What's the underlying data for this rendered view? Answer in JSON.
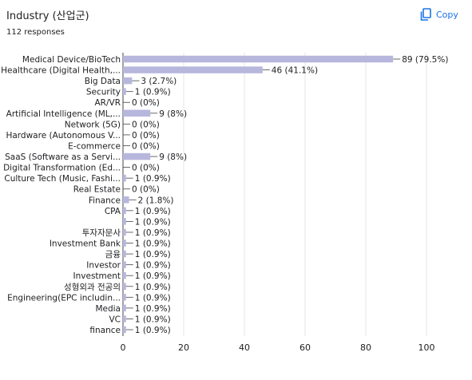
{
  "header": {
    "title": "Industry (산업군)",
    "responses": "112 responses",
    "copy_label": "Copy"
  },
  "colors": {
    "bar": "#b7b7dd",
    "grid": "#e6e6e6",
    "axis": "#444444",
    "text": "#202124",
    "accent": "#1a73e8"
  },
  "icons": {
    "copy": "copy-icon"
  },
  "chart_data": {
    "type": "bar",
    "orientation": "horizontal",
    "categories": [
      "Medical Device/BioTech",
      "Healthcare (Digital Health,...",
      "Big Data",
      "Security",
      "AR/VR",
      "Artificial Intelligence (ML,...",
      "Network (5G)",
      "Hardware (Autonomous V...",
      "E-commerce",
      "SaaS (Software as a Servi...",
      "Digital Transformation (Ed...",
      "Culture Tech (Music, Fashi...",
      "Real Estate",
      "Finance",
      "CPA",
      "",
      "투자자문사",
      "Investment Bank",
      "금융",
      "Investor",
      "Investment",
      "성형외과 전공의",
      "Engineering(EPC includin...",
      "Media",
      "VC",
      "finance"
    ],
    "values": [
      89,
      46,
      3,
      1,
      0,
      9,
      0,
      0,
      0,
      9,
      0,
      1,
      0,
      2,
      1,
      1,
      1,
      1,
      1,
      1,
      1,
      1,
      1,
      1,
      1,
      1
    ],
    "value_labels": [
      "89 (79.5%)",
      "46 (41.1%)",
      "3 (2.7%)",
      "1 (0.9%)",
      "0 (0%)",
      "9 (8%)",
      "0 (0%)",
      "0 (0%)",
      "0 (0%)",
      "9 (8%)",
      "0 (0%)",
      "1 (0.9%)",
      "0 (0%)",
      "2 (1.8%)",
      "1 (0.9%)",
      "1 (0.9%)",
      "1 (0.9%)",
      "1 (0.9%)",
      "1 (0.9%)",
      "1 (0.9%)",
      "1 (0.9%)",
      "1 (0.9%)",
      "1 (0.9%)",
      "1 (0.9%)",
      "1 (0.9%)",
      "1 (0.9%)"
    ],
    "xlim": [
      0,
      100
    ],
    "xticks": [
      0,
      20,
      40,
      60,
      80,
      100
    ],
    "grid": true,
    "legend": "none"
  }
}
